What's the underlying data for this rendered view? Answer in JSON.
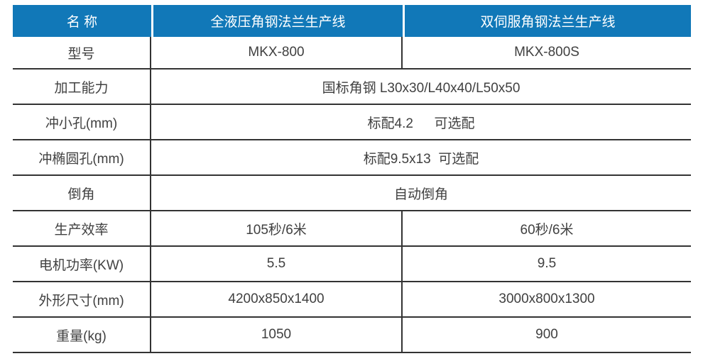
{
  "table": {
    "header": {
      "name_col": "名 称",
      "line1": "全液压角钢法兰生产线",
      "line2": "双伺服角钢法兰生产线"
    },
    "rows": [
      {
        "label": "型号",
        "type": "split",
        "col2": "MKX-800",
        "col3": "MKX-800S"
      },
      {
        "label": "加工能力",
        "type": "span",
        "value": "国标角钢 L30x30/L40x40/L50x50"
      },
      {
        "label": "冲小孔(mm)",
        "type": "span",
        "value": "标配4.2　  可选配"
      },
      {
        "label": "冲椭圆孔(mm)",
        "type": "span",
        "value": "标配9.5x13  可选配"
      },
      {
        "label": "倒角",
        "type": "span",
        "value": "自动倒角"
      },
      {
        "label": "生产效率",
        "type": "split",
        "col2": "105秒/6米",
        "col3": "60秒/6米"
      },
      {
        "label": "电机功率(KW)",
        "type": "split",
        "col2": "5.5",
        "col3": "9.5"
      },
      {
        "label": "外形尺寸(mm)",
        "type": "split",
        "col2": "4200x850x1400",
        "col3": "3000x800x1300"
      },
      {
        "label": "重量(kg)",
        "type": "split",
        "col2": "1050",
        "col3": "900"
      }
    ],
    "colors": {
      "header_bg": "#1178b8",
      "header_text": "#ffffff",
      "body_text": "#404040",
      "border": "#333333",
      "page_bg": "#ffffff"
    }
  }
}
